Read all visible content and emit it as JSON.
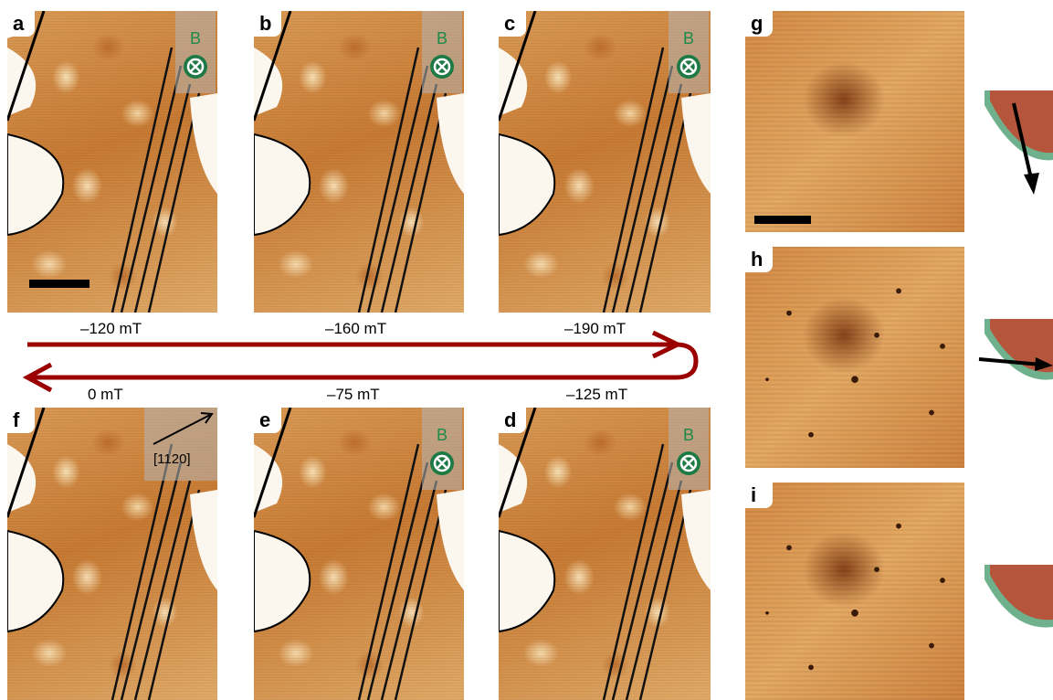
{
  "panels": {
    "a": {
      "label": "a",
      "field_marker": "B"
    },
    "b": {
      "label": "b",
      "field_marker": "B"
    },
    "c": {
      "label": "c",
      "field_marker": "B"
    },
    "d": {
      "label": "d",
      "field_marker": "B"
    },
    "e": {
      "label": "e",
      "field_marker": "B"
    },
    "f": {
      "label": "f",
      "direction_label": "[1120]"
    },
    "g": {
      "label": "g"
    },
    "h": {
      "label": "h"
    },
    "i": {
      "label": "i"
    }
  },
  "fields": {
    "a": "–120 mT",
    "b": "–160 mT",
    "c": "–190 mT",
    "d": "–125 mT",
    "e": "–75 mT",
    "f": "0 mT"
  },
  "colors": {
    "arrow": "#9b0000",
    "field_marker": "#1e7a45",
    "cone_fill": "#b5553c",
    "cone_rim": "#6fb08d"
  }
}
